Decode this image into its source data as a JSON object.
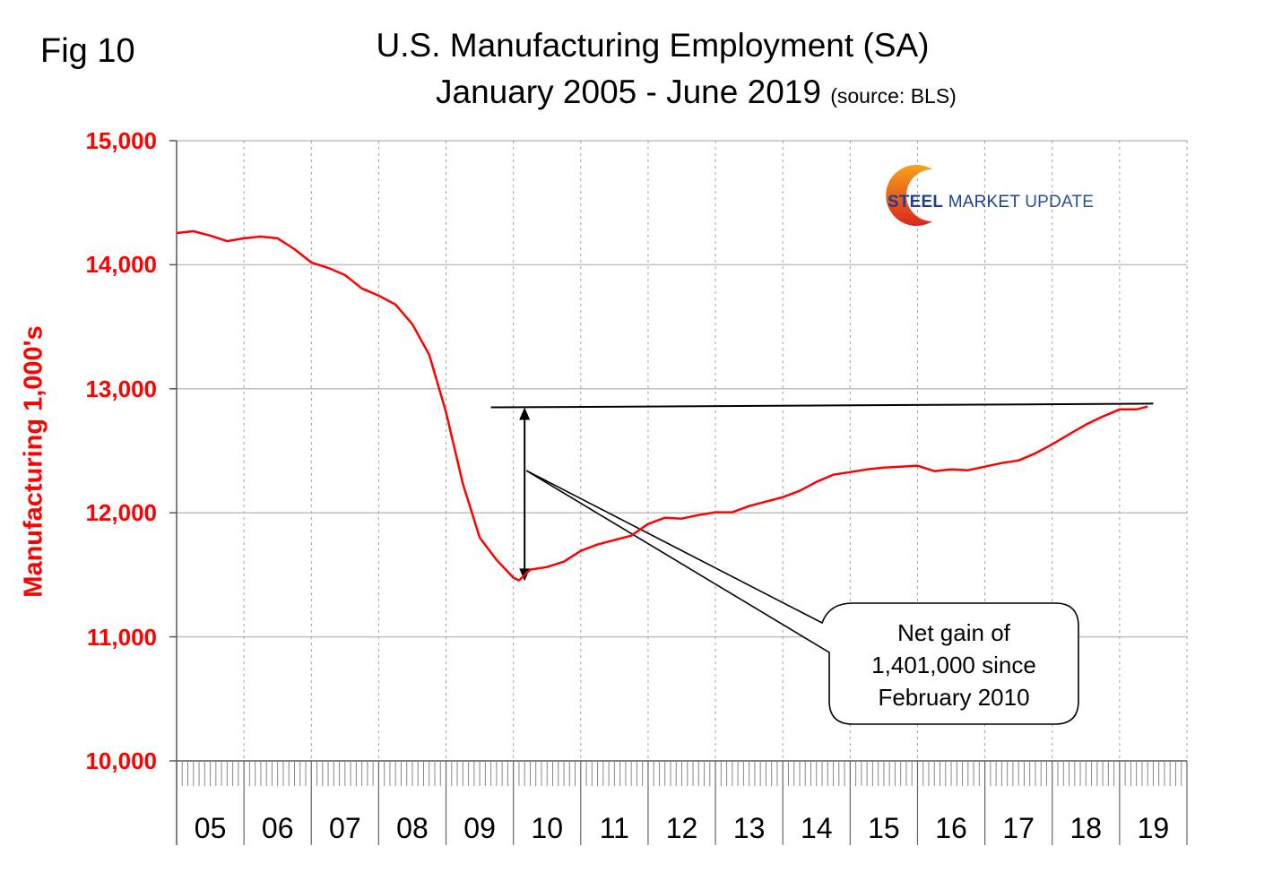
{
  "figure_label": "Fig 10",
  "chart_data": {
    "type": "line",
    "title": "U.S. Manufacturing Employment (SA)",
    "subtitle": "January 2005 - June 2019",
    "source_note": "(source: BLS)",
    "xlabel": "",
    "ylabel": "Manufacturing  1,000's",
    "ylim": [
      10000,
      15000
    ],
    "xlim": [
      "2005-01",
      "2019-12"
    ],
    "y_ticks": [
      "15,000",
      "14,000",
      "13,000",
      "12,000",
      "11,000",
      "10,000"
    ],
    "y_tick_values": [
      15000,
      14000,
      13000,
      12000,
      11000,
      10000
    ],
    "x_tick_labels": [
      "05",
      "06",
      "07",
      "08",
      "09",
      "10",
      "11",
      "12",
      "13",
      "14",
      "15",
      "16",
      "17",
      "18",
      "19"
    ],
    "grid": true,
    "legend": "none",
    "series": [
      {
        "name": "Manufacturing Employment",
        "color": "#ff0000",
        "x": [
          "2005-01",
          "2005-04",
          "2005-07",
          "2005-10",
          "2006-01",
          "2006-04",
          "2006-07",
          "2006-10",
          "2007-01",
          "2007-04",
          "2007-07",
          "2007-10",
          "2008-01",
          "2008-04",
          "2008-07",
          "2008-10",
          "2009-01",
          "2009-04",
          "2009-07",
          "2009-10",
          "2010-01",
          "2010-02",
          "2010-04",
          "2010-07",
          "2010-10",
          "2011-01",
          "2011-04",
          "2011-07",
          "2011-10",
          "2012-01",
          "2012-04",
          "2012-07",
          "2012-10",
          "2013-01",
          "2013-04",
          "2013-07",
          "2013-10",
          "2014-01",
          "2014-04",
          "2014-07",
          "2014-10",
          "2015-01",
          "2015-04",
          "2015-07",
          "2015-10",
          "2016-01",
          "2016-04",
          "2016-07",
          "2016-10",
          "2017-01",
          "2017-04",
          "2017-07",
          "2017-10",
          "2018-01",
          "2018-04",
          "2018-07",
          "2018-10",
          "2019-01",
          "2019-04",
          "2019-06"
        ],
        "values": [
          14256,
          14270,
          14235,
          14190,
          14213,
          14227,
          14213,
          14126,
          14018,
          13975,
          13917,
          13809,
          13751,
          13679,
          13520,
          13274,
          12812,
          12235,
          11801,
          11621,
          11477,
          11455,
          11542,
          11563,
          11606,
          11693,
          11744,
          11780,
          11816,
          11910,
          11960,
          11953,
          11982,
          12004,
          12004,
          12054,
          12090,
          12126,
          12177,
          12249,
          12307,
          12328,
          12350,
          12365,
          12372,
          12379,
          12336,
          12350,
          12343,
          12372,
          12401,
          12422,
          12480,
          12552,
          12632,
          12711,
          12776,
          12834,
          12834,
          12856
        ]
      }
    ],
    "annotations": {
      "reference_line": {
        "from": "2009-09",
        "to": "2019-07",
        "value_start": 12850,
        "value_end": 12880
      },
      "double_arrow": {
        "x": "2010-03",
        "top": 12850,
        "bottom": 11450
      },
      "callout_lines": [
        "Net gain of",
        "1,401,000 since",
        "February 2010"
      ]
    }
  },
  "logo": {
    "word1": "STEEL",
    "word2": "MARKET",
    "word3": "UPDATE"
  }
}
